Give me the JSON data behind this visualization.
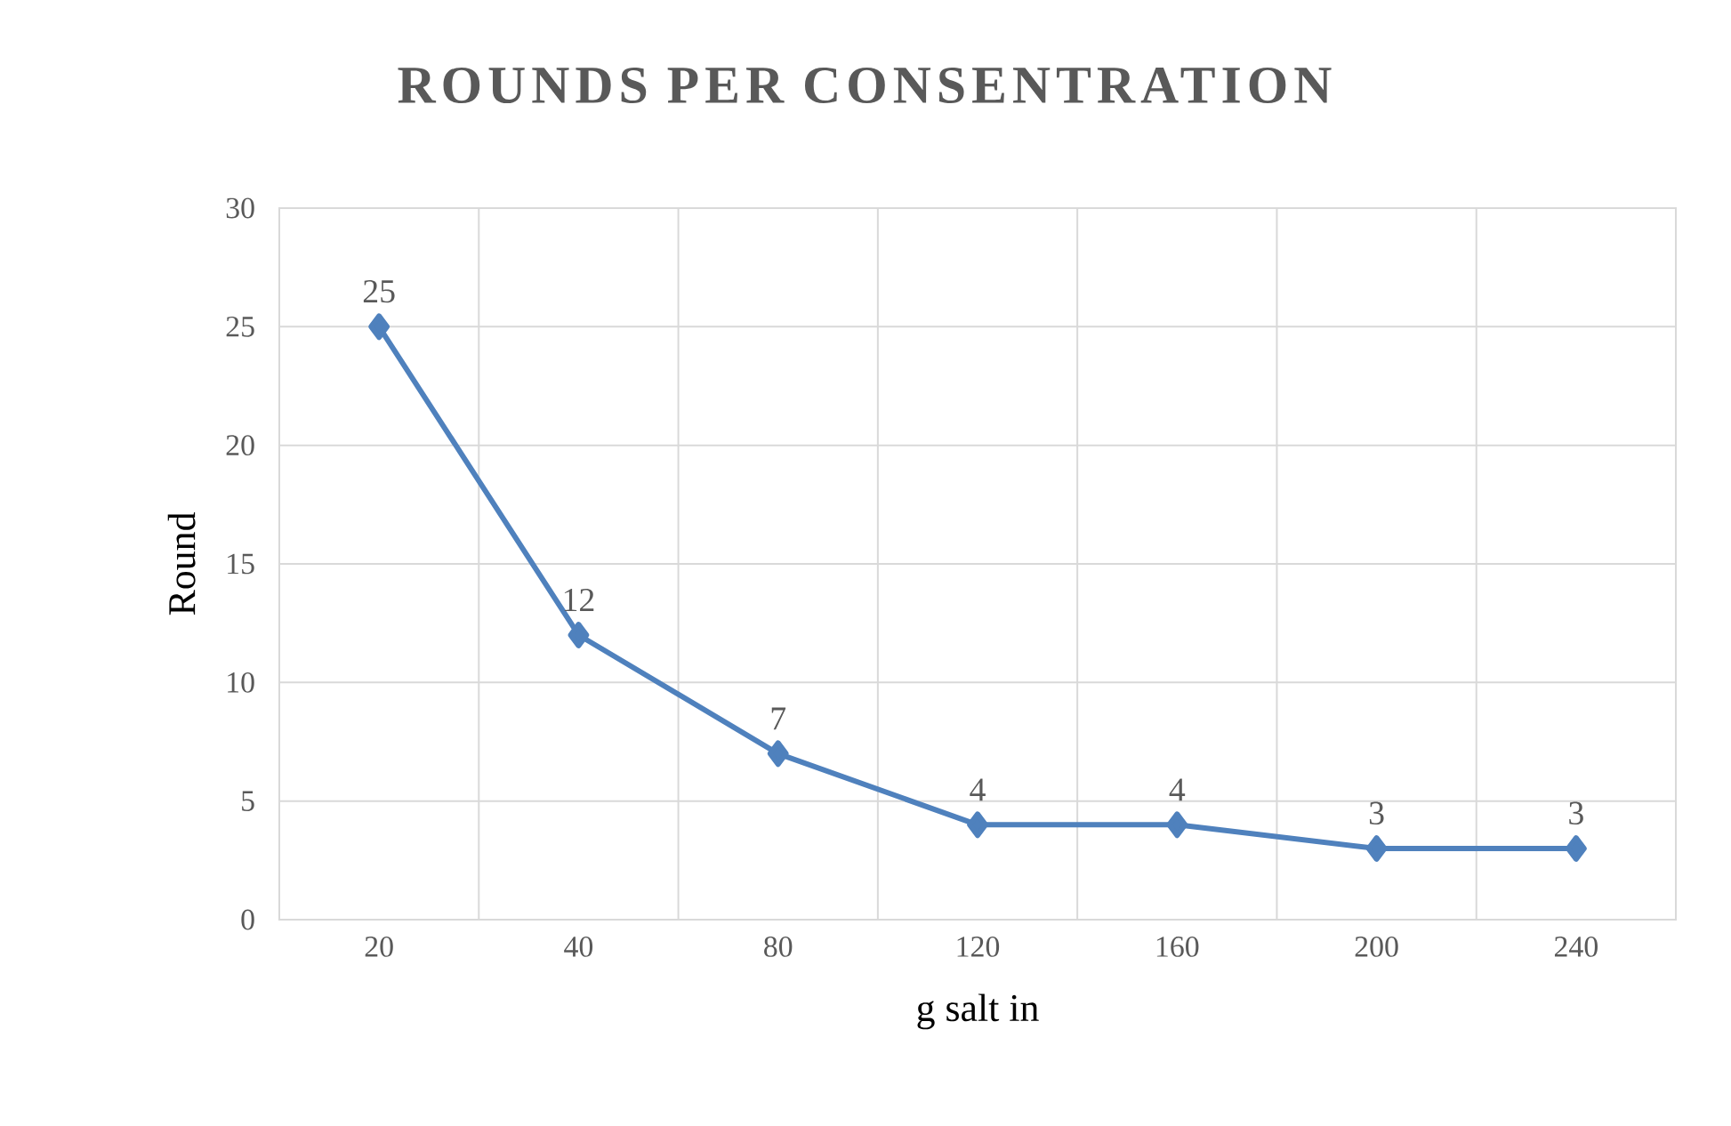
{
  "chart_data": {
    "type": "line",
    "title": "ROUNDS PER CONSENTRATION",
    "xlabel": "g salt in",
    "ylabel": "Round",
    "categories": [
      "20",
      "40",
      "80",
      "120",
      "160",
      "200",
      "240"
    ],
    "values": [
      25,
      12,
      7,
      4,
      4,
      3,
      3
    ],
    "color": "#4f81bd",
    "ylim": [
      0,
      30
    ],
    "yticks": [
      0,
      5,
      10,
      15,
      20,
      25,
      30
    ],
    "grid": true,
    "marker": "diamond",
    "line_style": "solid",
    "data_labels": true
  }
}
